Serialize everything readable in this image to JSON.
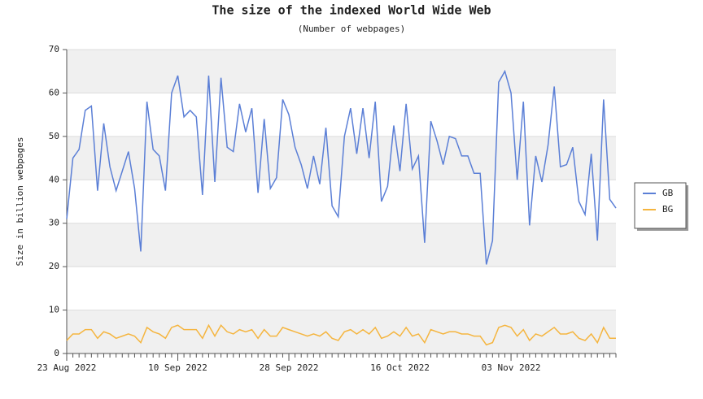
{
  "chart_data": {
    "type": "line",
    "title": "The size of the indexed World Wide Web",
    "subtitle": "(Number of webpages)",
    "y_label": "Size in billion webpages",
    "x": [
      "2022-08-23",
      "2022-08-24",
      "2022-08-25",
      "2022-08-26",
      "2022-08-27",
      "2022-08-28",
      "2022-08-29",
      "2022-08-30",
      "2022-08-31",
      "2022-09-01",
      "2022-09-02",
      "2022-09-03",
      "2022-09-04",
      "2022-09-05",
      "2022-09-06",
      "2022-09-07",
      "2022-09-08",
      "2022-09-09",
      "2022-09-10",
      "2022-09-11",
      "2022-09-12",
      "2022-09-13",
      "2022-09-14",
      "2022-09-15",
      "2022-09-16",
      "2022-09-17",
      "2022-09-18",
      "2022-09-19",
      "2022-09-20",
      "2022-09-21",
      "2022-09-22",
      "2022-09-23",
      "2022-09-24",
      "2022-09-25",
      "2022-09-26",
      "2022-09-27",
      "2022-09-28",
      "2022-09-29",
      "2022-09-30",
      "2022-10-01",
      "2022-10-02",
      "2022-10-03",
      "2022-10-04",
      "2022-10-05",
      "2022-10-06",
      "2022-10-07",
      "2022-10-08",
      "2022-10-09",
      "2022-10-10",
      "2022-10-11",
      "2022-10-12",
      "2022-10-13",
      "2022-10-14",
      "2022-10-15",
      "2022-10-16",
      "2022-10-17",
      "2022-10-18",
      "2022-10-19",
      "2022-10-20",
      "2022-10-21",
      "2022-10-22",
      "2022-10-23",
      "2022-10-24",
      "2022-10-25",
      "2022-10-26",
      "2022-10-27",
      "2022-10-28",
      "2022-10-29",
      "2022-10-30",
      "2022-10-31",
      "2022-11-01",
      "2022-11-02",
      "2022-11-03",
      "2022-11-04",
      "2022-11-05",
      "2022-11-06",
      "2022-11-07",
      "2022-11-08",
      "2022-11-09",
      "2022-11-10",
      "2022-11-11",
      "2022-11-12",
      "2022-11-13",
      "2022-11-14",
      "2022-11-15",
      "2022-11-16",
      "2022-11-17",
      "2022-11-18",
      "2022-11-19",
      "2022-11-20"
    ],
    "series": [
      {
        "name": "GB",
        "color": "#5b7fd6",
        "values": [
          31,
          45,
          47,
          56,
          57,
          37.5,
          53,
          43,
          37.5,
          42,
          46.5,
          38,
          23.5,
          58,
          47,
          45.5,
          37.5,
          60,
          64,
          54.5,
          56,
          54.5,
          36.5,
          64,
          39.5,
          63.5,
          47.5,
          46.5,
          57.5,
          51,
          56.5,
          37,
          54,
          38,
          40.5,
          58.5,
          55,
          47.5,
          43.5,
          38,
          45.5,
          39,
          52,
          34,
          31.5,
          50,
          56.5,
          46,
          56.5,
          45,
          58,
          35,
          38.5,
          52.5,
          42,
          57.5,
          42.5,
          45.5,
          25.5,
          53.5,
          49,
          43.5,
          50,
          49.5,
          45.5,
          45.5,
          41.5,
          41.5,
          20.5,
          26,
          62.5,
          65,
          60,
          40,
          58,
          29.5,
          45.5,
          39.5,
          48,
          61.5,
          43,
          43.5,
          47.5,
          35,
          32,
          46,
          26,
          58.5,
          35.5,
          33.5
        ]
      },
      {
        "name": "BG",
        "color": "#f5b53f",
        "values": [
          3,
          4.5,
          4.5,
          5.5,
          5.5,
          3.5,
          5,
          4.5,
          3.5,
          4,
          4.5,
          4,
          2.5,
          6,
          5,
          4.5,
          3.5,
          6,
          6.5,
          5.5,
          5.5,
          5.5,
          3.5,
          6.5,
          4,
          6.5,
          5,
          4.5,
          5.5,
          5,
          5.5,
          3.5,
          5.5,
          4,
          4,
          6,
          5.5,
          5,
          4.5,
          4,
          4.5,
          4,
          5,
          3.5,
          3,
          5,
          5.5,
          4.5,
          5.5,
          4.5,
          6,
          3.5,
          4,
          5,
          4,
          6,
          4,
          4.5,
          2.5,
          5.5,
          5,
          4.5,
          5,
          5,
          4.5,
          4.5,
          4,
          4,
          2,
          2.5,
          6,
          6.5,
          6,
          4,
          5.5,
          3,
          4.5,
          4,
          5,
          6,
          4.5,
          4.5,
          5,
          3.5,
          3,
          4.5,
          2.5,
          6,
          3.5,
          3.5
        ]
      }
    ],
    "xlim": [
      "2022-08-23",
      "2022-11-20"
    ],
    "xticks": [
      {
        "value": "2022-08-23",
        "label": "23 Aug 2022"
      },
      {
        "value": "2022-09-10",
        "label": "10 Sep 2022"
      },
      {
        "value": "2022-09-28",
        "label": "28 Sep 2022"
      },
      {
        "value": "2022-10-16",
        "label": "16 Oct 2022"
      },
      {
        "value": "2022-11-03",
        "label": "03 Nov 2022"
      }
    ],
    "ylim": [
      0,
      70
    ],
    "yticks": [
      0,
      10,
      20,
      30,
      40,
      50,
      60,
      70
    ],
    "grid": true,
    "legend": "right"
  }
}
